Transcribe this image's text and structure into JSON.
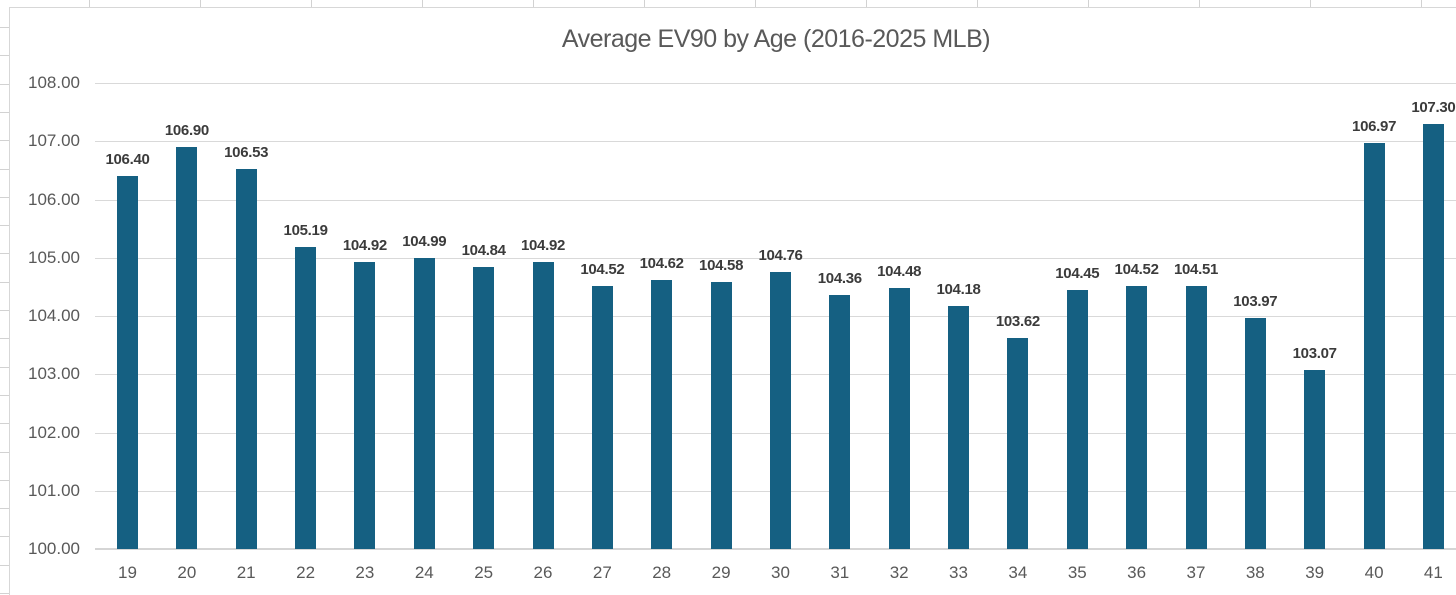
{
  "chart_data": {
    "type": "bar",
    "title": "Average EV90 by Age (2016-2025 MLB)",
    "xlabel": "",
    "ylabel": "",
    "categories": [
      "19",
      "20",
      "21",
      "22",
      "23",
      "24",
      "25",
      "26",
      "27",
      "28",
      "29",
      "30",
      "31",
      "32",
      "33",
      "34",
      "35",
      "36",
      "37",
      "38",
      "39",
      "40",
      "41"
    ],
    "values": [
      106.4,
      106.9,
      106.53,
      105.19,
      104.92,
      104.99,
      104.84,
      104.92,
      104.52,
      104.62,
      104.58,
      104.76,
      104.36,
      104.48,
      104.18,
      103.62,
      104.45,
      104.52,
      104.51,
      103.97,
      103.07,
      106.97,
      107.3
    ],
    "data_labels": [
      "106.40",
      "106.90",
      "106.53",
      "105.19",
      "104.92",
      "104.99",
      "104.84",
      "104.92",
      "104.52",
      "104.62",
      "104.58",
      "104.76",
      "104.36",
      "104.48",
      "104.18",
      "103.62",
      "104.45",
      "104.52",
      "104.51",
      "103.97",
      "103.07",
      "106.97",
      "107.30"
    ],
    "ylim": [
      100,
      108
    ],
    "y_tick_step": 1,
    "y_tick_labels": [
      "100.00",
      "101.00",
      "102.00",
      "103.00",
      "104.00",
      "105.00",
      "106.00",
      "107.00",
      "108.00"
    ],
    "grid": true,
    "legend": false,
    "colors": {
      "bar": "#156082",
      "gridline": "#d9d9d9",
      "axis_line": "#d5d5d5",
      "tick_label": "#595959",
      "data_label": "#3b3b3b",
      "title": "#595959",
      "sheet_grid": "#d2d2d2",
      "chart_border": "#d7d7d7"
    }
  }
}
